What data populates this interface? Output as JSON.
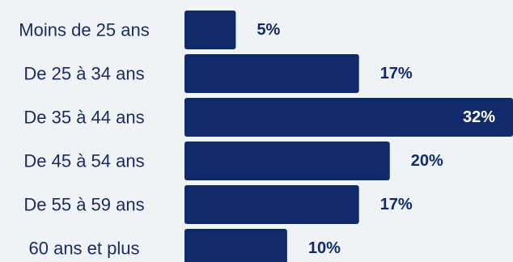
{
  "chart_data": {
    "type": "bar",
    "orientation": "horizontal",
    "categories": [
      "Moins de 25 ans",
      "De 25 à 34 ans",
      "De 35 à 44 ans",
      "De 45 à 54 ans",
      "De 55 à 59 ans",
      "60 ans et plus"
    ],
    "values": [
      5,
      17,
      32,
      20,
      17,
      10
    ],
    "value_labels": [
      "5%",
      "17%",
      "32%",
      "20%",
      "17%",
      "10%"
    ],
    "unit": "%",
    "title": "",
    "xlabel": "",
    "ylabel": "",
    "xlim": [
      0,
      32
    ],
    "grid": false,
    "legend": "none",
    "colors": {
      "bar": "#102a6b",
      "label_text": "#1b2a5e",
      "value_text_outside": "#102a6b",
      "value_text_inside": "#ffffff",
      "background": "#f0f3f6"
    }
  }
}
